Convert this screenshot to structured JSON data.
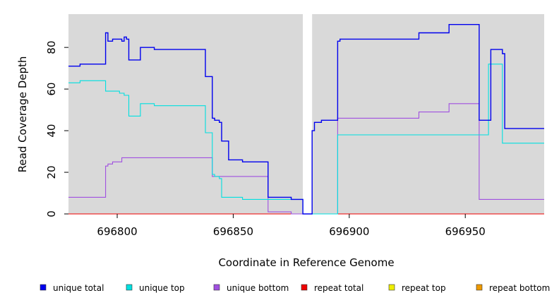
{
  "chart_data": {
    "type": "line",
    "xlabel": "Coordinate in Reference Genome",
    "ylabel": "Read Coverage Depth",
    "xlim": [
      696779,
      696984
    ],
    "ylim": [
      0,
      96
    ],
    "x_ticks": [
      696800,
      696850,
      696900,
      696950
    ],
    "y_ticks": [
      0,
      20,
      40,
      60,
      80
    ],
    "grid": false,
    "gap": [
      696880,
      696884
    ],
    "legend_position": "bottom",
    "series": [
      {
        "name": "unique total",
        "color": "#0000ee",
        "steps": [
          [
            696779,
            71
          ],
          [
            696784,
            72
          ],
          [
            696795,
            87
          ],
          [
            696796,
            83
          ],
          [
            696798,
            84
          ],
          [
            696802,
            83
          ],
          [
            696803,
            85
          ],
          [
            696804,
            84
          ],
          [
            696805,
            74
          ],
          [
            696810,
            80
          ],
          [
            696816,
            79
          ],
          [
            696838,
            66
          ],
          [
            696841,
            46
          ],
          [
            696842,
            45
          ],
          [
            696844,
            44
          ],
          [
            696845,
            35
          ],
          [
            696848,
            26
          ],
          [
            696854,
            25
          ],
          [
            696865,
            8
          ],
          [
            696875,
            7
          ],
          [
            696880,
            0
          ],
          [
            696884,
            40
          ],
          [
            696885,
            44
          ],
          [
            696888,
            45
          ],
          [
            696895,
            83
          ],
          [
            696896,
            84
          ],
          [
            696930,
            87
          ],
          [
            696943,
            91
          ],
          [
            696956,
            45
          ],
          [
            696961,
            79
          ],
          [
            696966,
            77
          ],
          [
            696967,
            41
          ],
          [
            696984,
            41
          ]
        ]
      },
      {
        "name": "unique top",
        "color": "#00e0e0",
        "steps": [
          [
            696779,
            63
          ],
          [
            696784,
            64
          ],
          [
            696795,
            59
          ],
          [
            696801,
            58
          ],
          [
            696803,
            57
          ],
          [
            696805,
            47
          ],
          [
            696810,
            53
          ],
          [
            696816,
            52
          ],
          [
            696838,
            39
          ],
          [
            696841,
            19
          ],
          [
            696842,
            18
          ],
          [
            696844,
            17
          ],
          [
            696845,
            8
          ],
          [
            696854,
            7
          ],
          [
            696880,
            0
          ],
          [
            696895,
            38
          ],
          [
            696960,
            72
          ],
          [
            696966,
            34
          ],
          [
            696984,
            34
          ]
        ]
      },
      {
        "name": "unique bottom",
        "color": "#a050e0",
        "steps": [
          [
            696779,
            8
          ],
          [
            696795,
            23
          ],
          [
            696796,
            24
          ],
          [
            696798,
            25
          ],
          [
            696802,
            27
          ],
          [
            696841,
            18
          ],
          [
            696865,
            1
          ],
          [
            696875,
            0
          ],
          [
            696880,
            0
          ],
          [
            696895,
            46
          ],
          [
            696930,
            49
          ],
          [
            696943,
            53
          ],
          [
            696956,
            7
          ],
          [
            696984,
            7
          ]
        ]
      },
      {
        "name": "repeat total",
        "color": "#ee0000",
        "steps": [
          [
            696779,
            0
          ],
          [
            696984,
            0
          ]
        ]
      },
      {
        "name": "repeat top",
        "color": "#eeee00",
        "steps": [
          [
            696779,
            0
          ],
          [
            696984,
            0
          ]
        ]
      },
      {
        "name": "repeat bottom",
        "color": "#ee9a00",
        "steps": [
          [
            696779,
            0
          ],
          [
            696984,
            0
          ]
        ]
      }
    ]
  }
}
